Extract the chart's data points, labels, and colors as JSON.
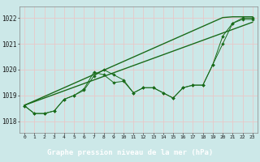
{
  "xlabel": "Graphe pression niveau de la mer (hPa)",
  "background_color": "#cce8e8",
  "label_bg_color": "#1a6b1a",
  "label_text_color": "#ffffff",
  "grid_color": "#e8c8c8",
  "line_color": "#1a6b1a",
  "xlim": [
    -0.5,
    23.5
  ],
  "ylim": [
    1017.55,
    1022.45
  ],
  "yticks": [
    1018,
    1019,
    1020,
    1021,
    1022
  ],
  "xticks": [
    0,
    1,
    2,
    3,
    4,
    5,
    6,
    7,
    8,
    9,
    10,
    11,
    12,
    13,
    14,
    15,
    16,
    17,
    18,
    19,
    20,
    21,
    22,
    23
  ],
  "series1": [
    1018.6,
    1018.3,
    1018.3,
    1018.4,
    1018.85,
    1019.0,
    1019.2,
    1019.75,
    1020.0,
    1019.8,
    1019.6,
    1019.1,
    1019.3,
    1019.3,
    1019.1,
    1018.9,
    1019.3,
    1019.4,
    1019.4,
    1020.2,
    1021.0,
    1021.8,
    1021.95,
    1021.95
  ],
  "series2": [
    1018.6,
    1018.3,
    1018.3,
    1018.4,
    1018.85,
    1019.0,
    1019.25,
    1019.9,
    1019.8,
    1019.5,
    1019.55,
    1019.1,
    1019.3,
    1019.3,
    1019.1,
    1018.9,
    1019.3,
    1019.4,
    1019.4,
    1020.2,
    1021.3,
    1021.8,
    1022.0,
    1022.0
  ],
  "series_linear1": [
    1018.62,
    1018.79,
    1018.96,
    1019.13,
    1019.3,
    1019.47,
    1019.64,
    1019.81,
    1019.98,
    1020.15,
    1020.32,
    1020.49,
    1020.66,
    1020.83,
    1021.0,
    1021.17,
    1021.34,
    1021.51,
    1021.68,
    1021.85,
    1022.02,
    1022.05,
    1022.05,
    1022.05
  ],
  "series_linear2": [
    1018.62,
    1018.76,
    1018.9,
    1019.04,
    1019.18,
    1019.32,
    1019.46,
    1019.6,
    1019.74,
    1019.88,
    1020.02,
    1020.16,
    1020.3,
    1020.44,
    1020.58,
    1020.72,
    1020.86,
    1021.0,
    1021.14,
    1021.28,
    1021.42,
    1021.56,
    1021.7,
    1021.84
  ]
}
